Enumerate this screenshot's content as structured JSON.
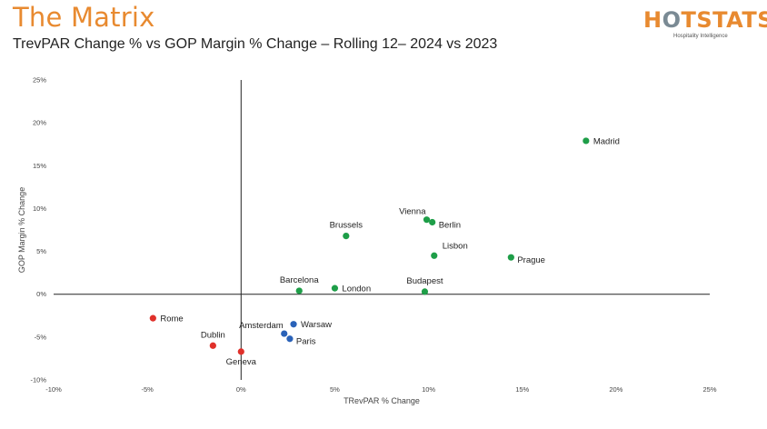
{
  "header": {
    "title": "The Matrix",
    "subtitle": "TrevPAR Change % vs GOP Margin % Change – Rolling 12– 2024  vs 2023"
  },
  "logo": {
    "word_part1": "H",
    "word_o": "O",
    "word_part2": "TSTATS",
    "tagline": "Hospitality Intelligence"
  },
  "colors": {
    "title": "#e88a30",
    "green": "#1e9e48",
    "blue": "#2a62b8",
    "red": "#e0302a"
  },
  "chart_data": {
    "type": "scatter",
    "xlabel": "TRevPAR % Change",
    "ylabel": "GOP Margin % Change",
    "xlim": [
      -10,
      25
    ],
    "ylim": [
      -10,
      25
    ],
    "x_ticks": [
      -10,
      -5,
      0,
      5,
      10,
      15,
      20,
      25
    ],
    "y_ticks": [
      -10,
      -5,
      0,
      5,
      10,
      15,
      20,
      25
    ],
    "x_tick_labels": [
      "-10%",
      "-5%",
      "0%",
      "5%",
      "10%",
      "15%",
      "20%",
      "25%"
    ],
    "y_tick_labels": [
      "-10%",
      "-5%",
      "0%",
      "5%",
      "10%",
      "15%",
      "20%",
      "25%"
    ],
    "grid": false,
    "points": [
      {
        "label": "Madrid",
        "x": 18.4,
        "y": 17.9,
        "color": "green",
        "anchor": "right"
      },
      {
        "label": "Vienna",
        "x": 9.9,
        "y": 8.7,
        "color": "green",
        "anchor": "above-left"
      },
      {
        "label": "Berlin",
        "x": 10.2,
        "y": 8.4,
        "color": "green",
        "anchor": "below-right"
      },
      {
        "label": "Brussels",
        "x": 5.6,
        "y": 6.8,
        "color": "green",
        "anchor": "above"
      },
      {
        "label": "Lisbon",
        "x": 10.3,
        "y": 4.5,
        "color": "green",
        "anchor": "above-right"
      },
      {
        "label": "Prague",
        "x": 14.4,
        "y": 4.3,
        "color": "green",
        "anchor": "below-right"
      },
      {
        "label": "Barcelona",
        "x": 3.1,
        "y": 0.4,
        "color": "green",
        "anchor": "above"
      },
      {
        "label": "London",
        "x": 5.0,
        "y": 0.7,
        "color": "green",
        "anchor": "right"
      },
      {
        "label": "Budapest",
        "x": 9.8,
        "y": 0.3,
        "color": "green",
        "anchor": "above"
      },
      {
        "label": "Warsaw",
        "x": 2.8,
        "y": -3.5,
        "color": "blue",
        "anchor": "right"
      },
      {
        "label": "Amsterdam",
        "x": 2.3,
        "y": -4.6,
        "color": "blue",
        "anchor": "above-left"
      },
      {
        "label": "Paris",
        "x": 2.6,
        "y": -5.2,
        "color": "blue",
        "anchor": "below-right"
      },
      {
        "label": "Rome",
        "x": -4.7,
        "y": -2.8,
        "color": "red",
        "anchor": "right"
      },
      {
        "label": "Dublin",
        "x": -1.5,
        "y": -6.0,
        "color": "red",
        "anchor": "above"
      },
      {
        "label": "Geneva",
        "x": 0.0,
        "y": -6.7,
        "color": "red",
        "anchor": "below"
      }
    ]
  }
}
